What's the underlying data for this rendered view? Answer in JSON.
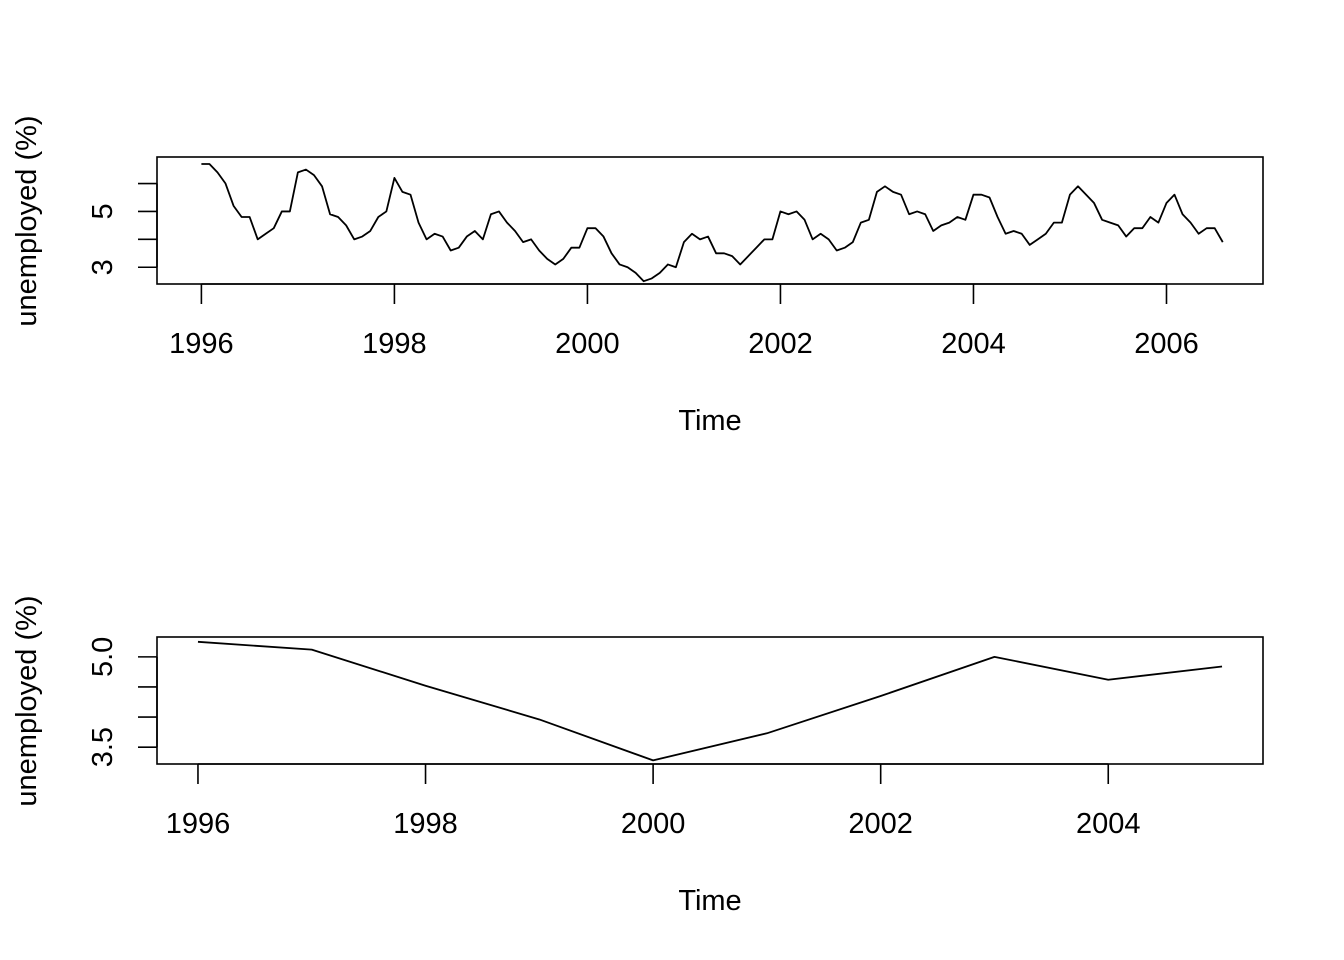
{
  "chart_data": [
    {
      "type": "line",
      "title": "",
      "xlabel": "Time",
      "ylabel": "unemployed (%)",
      "xlim": [
        1995.54,
        2007.0
      ],
      "ylim": [
        2.4,
        6.95
      ],
      "x_ticks": [
        1996,
        1998,
        2000,
        2002,
        2004,
        2006
      ],
      "x_tick_labels": [
        "1996",
        "1998",
        "2000",
        "2002",
        "2004",
        "2006"
      ],
      "y_ticks": [
        3,
        4,
        5,
        6
      ],
      "y_tick_labels": [
        "3",
        "",
        "5",
        ""
      ],
      "grid": false,
      "x_start": 1996,
      "x_step": 0.08333,
      "values": [
        6.7,
        6.7,
        6.4,
        6.0,
        5.2,
        4.8,
        4.8,
        4.0,
        4.2,
        4.4,
        5.0,
        5.0,
        6.4,
        6.5,
        6.3,
        5.9,
        4.9,
        4.8,
        4.5,
        4.0,
        4.1,
        4.3,
        4.8,
        5.0,
        6.2,
        5.7,
        5.6,
        4.6,
        4.0,
        4.2,
        4.1,
        3.6,
        3.7,
        4.1,
        4.3,
        4.0,
        4.9,
        5.0,
        4.6,
        4.3,
        3.9,
        4.0,
        3.6,
        3.3,
        3.1,
        3.3,
        3.7,
        3.7,
        4.4,
        4.4,
        4.1,
        3.5,
        3.1,
        3.0,
        2.8,
        2.5,
        2.6,
        2.8,
        3.1,
        3.0,
        3.9,
        4.2,
        4.0,
        4.1,
        3.5,
        3.5,
        3.4,
        3.1,
        3.4,
        3.7,
        4.0,
        4.0,
        5.0,
        4.9,
        5.0,
        4.7,
        4.0,
        4.2,
        4.0,
        3.6,
        3.7,
        3.9,
        4.6,
        4.7,
        5.7,
        5.9,
        5.7,
        5.6,
        4.9,
        5.0,
        4.9,
        4.3,
        4.5,
        4.6,
        4.8,
        4.7,
        5.6,
        5.6,
        5.5,
        4.8,
        4.2,
        4.3,
        4.2,
        3.8,
        4.0,
        4.2,
        4.6,
        4.6,
        5.6,
        5.9,
        5.6,
        5.3,
        4.7,
        4.6,
        4.5,
        4.1,
        4.4,
        4.4,
        4.8,
        4.6,
        5.3,
        5.6,
        4.9,
        4.6,
        4.2,
        4.4,
        4.4,
        3.9
      ]
    },
    {
      "type": "line",
      "title": "",
      "xlabel": "Time",
      "ylabel": "unemployed (%)",
      "xlim": [
        1995.64,
        2005.36
      ],
      "ylim": [
        3.22,
        5.33
      ],
      "x_ticks": [
        1996,
        1998,
        2000,
        2002,
        2004
      ],
      "x_tick_labels": [
        "1996",
        "1998",
        "2000",
        "2002",
        "2004"
      ],
      "y_ticks": [
        3.5,
        4.0,
        4.5,
        5.0
      ],
      "y_tick_labels": [
        "3.5",
        "",
        "",
        "5.0"
      ],
      "grid": false,
      "x": [
        1996,
        1997,
        1998,
        1999,
        2000,
        2001,
        2002,
        2003,
        2004,
        2005
      ],
      "values": [
        5.25,
        5.12,
        4.52,
        3.96,
        3.28,
        3.73,
        4.35,
        5.0,
        4.62,
        4.84
      ]
    }
  ]
}
